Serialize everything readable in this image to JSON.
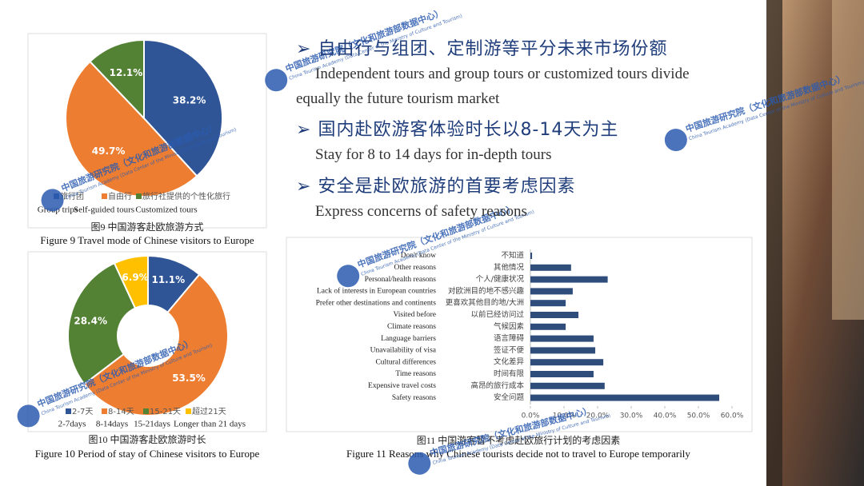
{
  "bullets": [
    {
      "zh": "自由行与组团、定制游等平分未来市场份额",
      "en": "Independent tours and group tours or customized tours divide equally the future tourism market"
    },
    {
      "zh": "国内赴欧游客体验时长以8-14天为主",
      "en": "Stay for 8 to 14 days for in-depth tours"
    },
    {
      "zh": "安全是赴欧旅游的首要考虑因素",
      "en": "Express concerns of safety reasons"
    }
  ],
  "watermark": {
    "zh": "中国旅游研究院（文化和旅游部数据中心）",
    "en": "China Tourism Academy (Data Center of the Ministry of Culture and Tourism)"
  },
  "chart_data": [
    {
      "type": "pie",
      "caption_zh": "图9 中国游客赴欧旅游方式",
      "caption_en": "Figure 9 Travel mode of Chinese visitors to Europe",
      "categories": [
        "旅行团",
        "自由行",
        "旅行社提供的个性化旅行"
      ],
      "categories_en": [
        "Group trips",
        "Self-guided tours",
        "Customized tours"
      ],
      "values": [
        38.2,
        49.7,
        12.1
      ],
      "value_labels": [
        "38.2%",
        "49.7%",
        "12.1%"
      ],
      "colors": [
        "#2f5597",
        "#ed7d31",
        "#548235"
      ],
      "legend": "bottom"
    },
    {
      "type": "donut",
      "caption_zh": "图10 中国游客赴欧旅游时长",
      "caption_en": "Figure 10 Period of stay of Chinese visitors to Europe",
      "categories": [
        "2-7天",
        "8-14天",
        "15-21天",
        "超过21天"
      ],
      "categories_en": [
        "2-7days",
        "8-14days",
        "15-21days",
        "Longer than 21 days"
      ],
      "values": [
        11.1,
        53.5,
        28.4,
        6.9
      ],
      "value_labels": [
        "11.1%",
        "53.5%",
        "28.4%",
        "6.9%"
      ],
      "colors": [
        "#2f5597",
        "#ed7d31",
        "#548235",
        "#ffc000"
      ],
      "legend": "bottom"
    },
    {
      "type": "hbar",
      "caption_zh": "图11 中国游客暂不考虑赴欧旅行计划的考虑因素",
      "caption_en": "Figure 11 Reasons why Chinese tourists decide not to travel to Europe temporarily",
      "categories": [
        "不知道",
        "其他情况",
        "个人/健康状况",
        "对欧洲目的地不感兴趣",
        "更喜欢其他目的地/大洲",
        "以前已经访问过",
        "气候因素",
        "语言障碍",
        "签证不便",
        "文化差异",
        "时间有限",
        "高昂的旅行成本",
        "安全问题"
      ],
      "categories_en": [
        "Don't know",
        "Other reasons",
        "Personal/health reasons",
        "Lack of interests in European countries",
        "Prefer other destinations and continents",
        "Visited before",
        "Climate reasons",
        "Language barriers",
        "Unavailability of visa",
        "Cultural differences",
        "Time reasons",
        "Expensive travel costs",
        "Safety reasons"
      ],
      "values": [
        0.5,
        12.1,
        23,
        12.6,
        10.5,
        14.3,
        10.5,
        18.8,
        19.3,
        21.7,
        18.8,
        22.1,
        56.2
      ],
      "color": "#2e4d7b",
      "xlim": [
        0,
        60
      ],
      "xticks": [
        {
          "value": 0,
          "label": "0.0%"
        },
        {
          "value": 10,
          "label": "10.0%"
        },
        {
          "value": 20,
          "label": "20.0%"
        },
        {
          "value": 30,
          "label": "30.0%"
        },
        {
          "value": 40,
          "label": "40.0%"
        },
        {
          "value": 50,
          "label": "50.0%"
        },
        {
          "value": 60,
          "label": "60.0%"
        }
      ]
    }
  ]
}
